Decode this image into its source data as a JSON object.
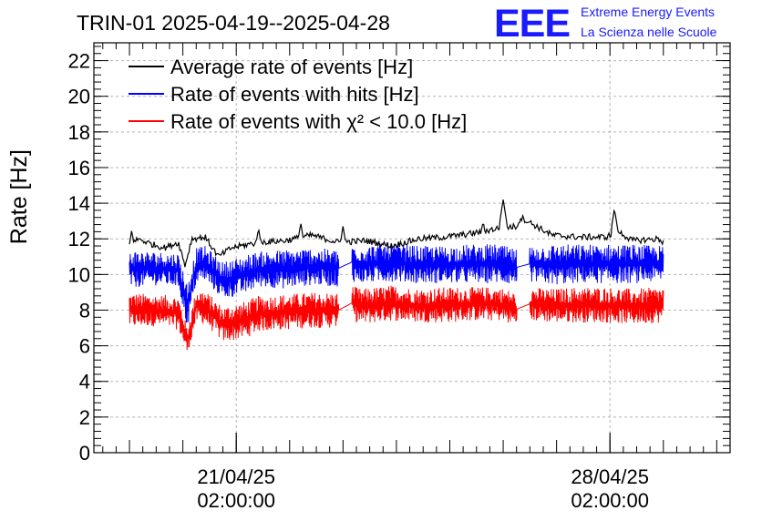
{
  "chart_data": {
    "type": "line",
    "title": "TRIN-01 2025-04-19--2025-04-28",
    "ylabel": "Rate [Hz]",
    "xlabel": "",
    "ylim": [
      0,
      23
    ],
    "y_ticks": [
      "0",
      "2",
      "4",
      "6",
      "8",
      "10",
      "12",
      "14",
      "16",
      "18",
      "20",
      "22"
    ],
    "x_range": [
      "2025-04-18 10:00",
      "2025-04-30 08:00"
    ],
    "x_ticks": [
      {
        "date": "2025-04-21 02:00",
        "line1": "21/04/25",
        "line2": "02:00:00"
      },
      {
        "date": "2025-04-28 02:00",
        "line1": "28/04/25",
        "line2": "02:00:00"
      }
    ],
    "grid": true,
    "legend_position": "top-left",
    "branding": {
      "logo": "EEE",
      "line1": "Extreme Energy Events",
      "line2": "La Scienza nelle Scuole",
      "color": "#1a1aff"
    },
    "series": [
      {
        "name": "Average rate of events [Hz]",
        "color": "#000000",
        "style": "line",
        "x": [
          "2025-04-19 02:00",
          "2025-04-19 06:00",
          "2025-04-19 12:00",
          "2025-04-19 18:00",
          "2025-04-20 00:00",
          "2025-04-20 03:00",
          "2025-04-20 06:00",
          "2025-04-20 12:00",
          "2025-04-20 18:00",
          "2025-04-21 00:00",
          "2025-04-21 12:00",
          "2025-04-22 00:00",
          "2025-04-22 12:00",
          "2025-04-23 00:00",
          "2025-04-23 12:00",
          "2025-04-24 00:00",
          "2025-04-24 12:00",
          "2025-04-25 00:00",
          "2025-04-25 12:00",
          "2025-04-26 00:00",
          "2025-04-26 08:00",
          "2025-04-26 10:00",
          "2025-04-27 00:00",
          "2025-04-27 12:00",
          "2025-04-28 00:00",
          "2025-04-28 06:00",
          "2025-04-28 12:00",
          "2025-04-29 00:00",
          "2025-04-29 02:00"
        ],
        "y": [
          11.6,
          12.0,
          11.7,
          11.5,
          11.8,
          10.5,
          12.0,
          12.1,
          11.0,
          11.5,
          11.8,
          11.9,
          12.2,
          11.8,
          11.9,
          11.6,
          12.0,
          12.1,
          12.3,
          12.6,
          12.7,
          13.2,
          12.2,
          12.1,
          12.1,
          12.4,
          11.9,
          12.0,
          11.8
        ],
        "spikes": [
          {
            "x": "2025-04-19 03:00",
            "y": 12.5
          },
          {
            "x": "2025-04-21 12:00",
            "y": 12.6
          },
          {
            "x": "2025-04-22 07:00",
            "y": 12.9
          },
          {
            "x": "2025-04-23 02:00",
            "y": 12.7
          },
          {
            "x": "2025-04-25 17:00",
            "y": 13.0
          },
          {
            "x": "2025-04-26 02:00",
            "y": 14.2
          },
          {
            "x": "2025-04-28 04:00",
            "y": 13.7
          }
        ]
      },
      {
        "name": "Rate of events with hits [Hz]",
        "color": "#0000ff",
        "style": "band",
        "x": [
          "2025-04-19 02:00",
          "2025-04-19 12:00",
          "2025-04-20 00:00",
          "2025-04-20 04:00",
          "2025-04-20 08:00",
          "2025-04-20 12:00",
          "2025-04-20 20:00",
          "2025-04-21 06:00",
          "2025-04-21 12:00",
          "2025-04-22 00:00",
          "2025-04-22 12:00",
          "2025-04-23 00:00",
          "2025-04-23 06:00",
          "2025-04-23 10:00",
          "2025-04-24 00:00",
          "2025-04-24 12:00",
          "2025-04-25 00:00",
          "2025-04-25 12:00",
          "2025-04-26 00:00",
          "2025-04-26 08:00",
          "2025-04-26 14:00",
          "2025-04-27 00:00",
          "2025-04-27 12:00",
          "2025-04-28 00:00",
          "2025-04-28 12:00",
          "2025-04-29 02:00"
        ],
        "y_low": [
          9.2,
          9.4,
          9.3,
          6.9,
          9.5,
          9.6,
          8.6,
          8.9,
          9.3,
          9.2,
          9.4,
          9.3,
          9.6,
          9.5,
          9.6,
          9.5,
          9.5,
          9.5,
          9.5,
          9.4,
          9.6,
          9.4,
          9.5,
          9.5,
          9.5,
          9.6
        ],
        "y_high": [
          11.4,
          11.3,
          11.2,
          9.5,
          11.5,
          11.6,
          10.7,
          11.1,
          11.3,
          11.4,
          11.5,
          11.4,
          11.8,
          11.6,
          11.8,
          11.6,
          11.6,
          11.7,
          11.7,
          11.4,
          11.6,
          11.7,
          11.7,
          11.7,
          11.7,
          11.6
        ],
        "gaps": [
          [
            "2025-04-23 00:00",
            "2025-04-23 06:00"
          ],
          [
            "2025-04-26 08:00",
            "2025-04-26 14:00"
          ]
        ]
      },
      {
        "name": "Rate of events with χ² < 10.0 [Hz]",
        "color": "#ff0000",
        "style": "band",
        "x": [
          "2025-04-19 02:00",
          "2025-04-19 12:00",
          "2025-04-20 00:00",
          "2025-04-20 04:00",
          "2025-04-20 08:00",
          "2025-04-20 12:00",
          "2025-04-20 20:00",
          "2025-04-21 06:00",
          "2025-04-21 12:00",
          "2025-04-22 00:00",
          "2025-04-22 12:00",
          "2025-04-23 00:00",
          "2025-04-23 06:00",
          "2025-04-23 10:00",
          "2025-04-24 00:00",
          "2025-04-24 12:00",
          "2025-04-25 00:00",
          "2025-04-25 12:00",
          "2025-04-26 00:00",
          "2025-04-26 08:00",
          "2025-04-26 14:00",
          "2025-04-27 00:00",
          "2025-04-27 12:00",
          "2025-04-28 00:00",
          "2025-04-28 12:00",
          "2025-04-29 02:00"
        ],
        "y_low": [
          7.0,
          7.1,
          6.9,
          5.5,
          7.3,
          7.2,
          6.2,
          6.4,
          6.8,
          6.9,
          7.0,
          7.0,
          7.4,
          7.2,
          7.4,
          7.3,
          7.3,
          7.4,
          7.4,
          7.1,
          7.4,
          7.3,
          7.3,
          7.3,
          7.2,
          7.3
        ],
        "y_high": [
          9.0,
          8.9,
          8.8,
          7.0,
          9.2,
          9.1,
          8.2,
          8.5,
          8.8,
          8.9,
          9.0,
          9.0,
          9.4,
          9.2,
          9.4,
          9.2,
          9.3,
          9.3,
          9.3,
          9.0,
          9.3,
          9.2,
          9.3,
          9.3,
          9.2,
          9.3
        ],
        "gaps": [
          [
            "2025-04-23 00:00",
            "2025-04-23 06:00"
          ],
          [
            "2025-04-26 08:00",
            "2025-04-26 14:00"
          ]
        ]
      }
    ]
  }
}
